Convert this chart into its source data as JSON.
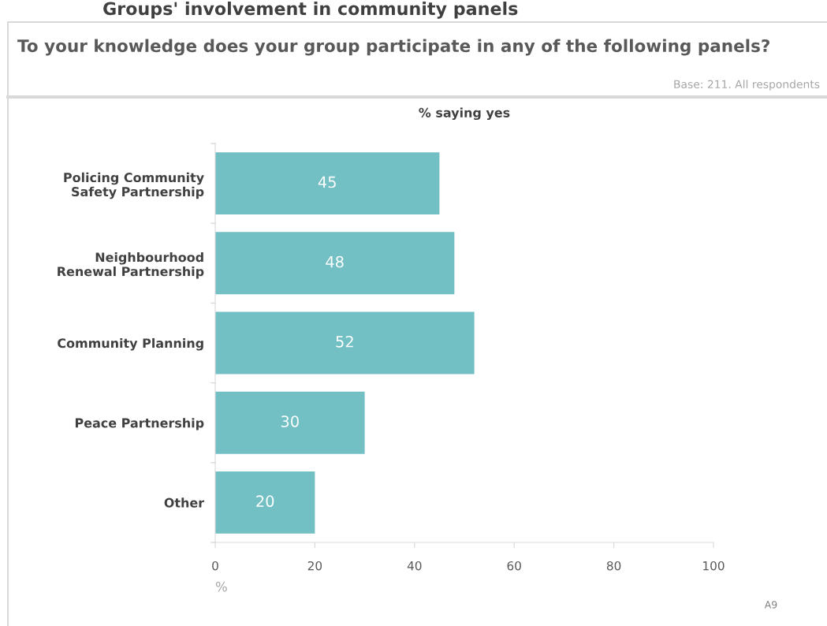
{
  "chart_data": {
    "type": "bar",
    "orientation": "horizontal",
    "title": "To your knowledge does your group participate in any of the following panels?",
    "subtitle": "% saying yes",
    "xlabel": "%",
    "annotations": [
      "Groups' involvement in community panels",
      "Base: 211. All respondents",
      "A9"
    ],
    "categories": [
      "Policing Community\nSafety Partnership",
      "Neighbourhood\nRenewal Partnership",
      "Community Planning",
      "Peace Partnership",
      "Other"
    ],
    "values": [
      45,
      48,
      52,
      30,
      20
    ],
    "color": "#72bfc4",
    "data_labels": true,
    "xlim": [
      0,
      100
    ],
    "xticks": [
      0,
      20,
      40,
      60,
      80,
      100
    ],
    "grid": false,
    "legend": false
  }
}
